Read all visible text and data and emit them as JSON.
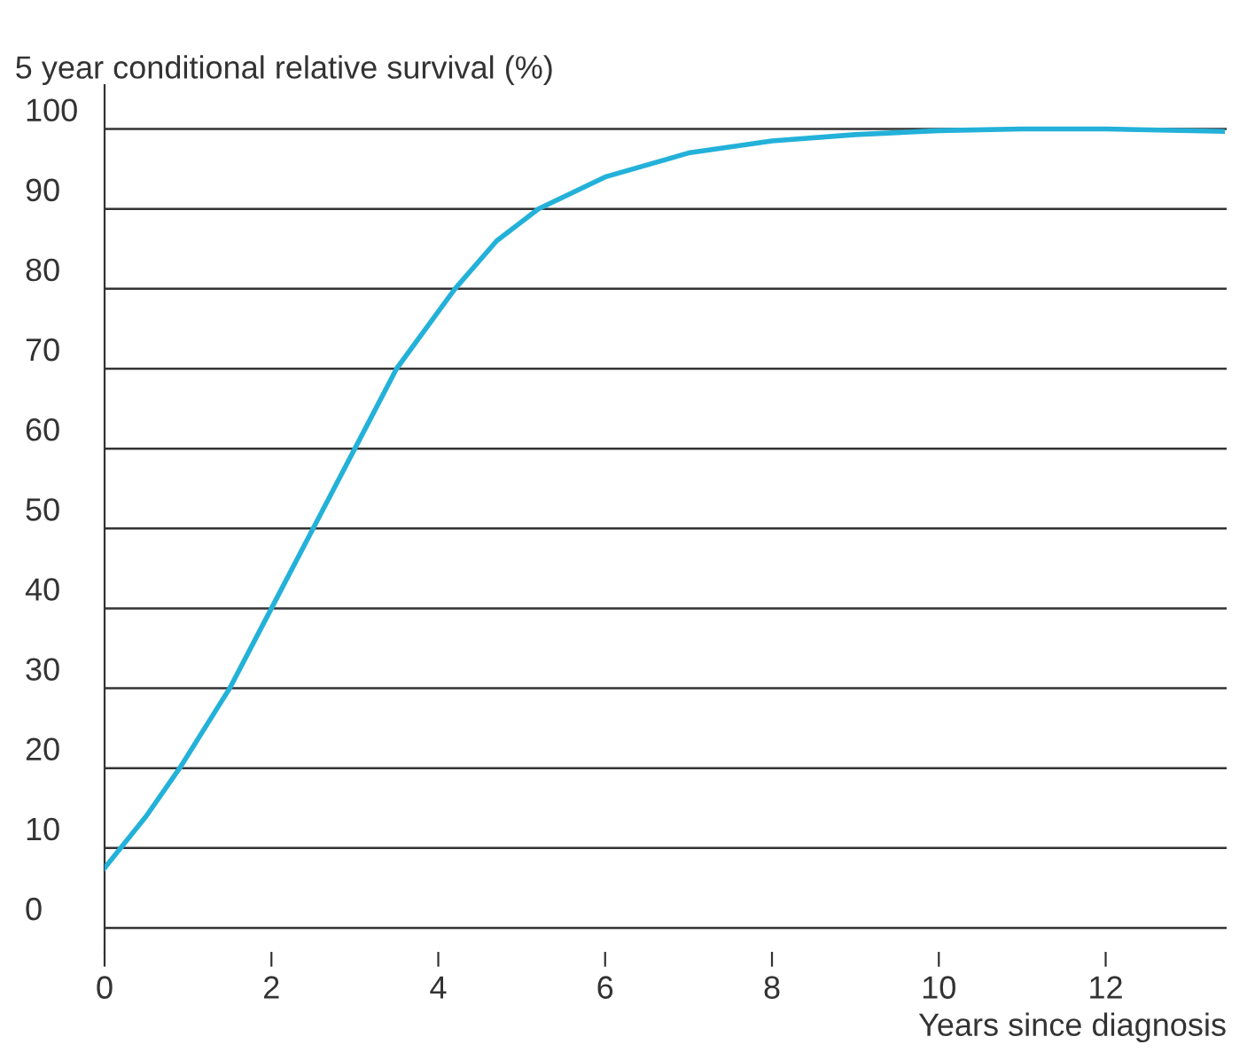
{
  "chart_data": {
    "type": "line",
    "ylabel": "5 year conditional relative survival (%)",
    "xlabel": "Years since diagnosis",
    "x": [
      0,
      0.5,
      0.9,
      1.5,
      2,
      2.5,
      3,
      3.5,
      4.2,
      4.7,
      5.2,
      6,
      7,
      8,
      9,
      10,
      11,
      12,
      13.4
    ],
    "series": [
      {
        "color": "#23b1d9",
        "values": [
          7.5,
          14,
          20,
          30,
          40,
          50,
          60,
          70,
          80,
          86,
          90,
          94,
          97,
          98.5,
          99.3,
          99.8,
          100,
          100,
          99.7
        ]
      }
    ],
    "xlim": [
      0,
      13.45
    ],
    "ylim": [
      -3,
      105.5
    ],
    "xticks": [
      0,
      2,
      4,
      6,
      8,
      10,
      12
    ],
    "yticks": [
      0,
      10,
      20,
      30,
      40,
      50,
      60,
      70,
      80,
      90,
      100
    ],
    "grid": "y",
    "marker": "none",
    "line_style": "solid",
    "legend": false
  }
}
